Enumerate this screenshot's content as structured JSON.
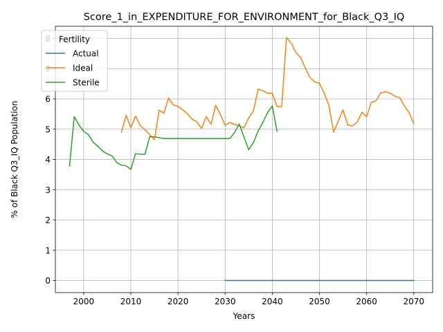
{
  "chart_data": {
    "type": "line",
    "title": "Score_1_in_EXPENDITURE_FOR_ENVIRONMENT_for_Black_Q3_IQ",
    "xlabel": "Years",
    "ylabel": "% of Black Q3_IQ Population",
    "xlim": [
      1994,
      2074
    ],
    "ylim": [
      -0.4,
      8.4
    ],
    "xticks": [
      2000,
      2010,
      2020,
      2030,
      2040,
      2050,
      2060,
      2070
    ],
    "yticks": [
      0,
      1,
      2,
      3,
      4,
      5,
      6,
      7,
      8
    ],
    "grid": true,
    "legend": {
      "title": "Fertility",
      "position": "top-left"
    },
    "series": [
      {
        "name": "Actual",
        "color": "#1f77b4",
        "x": [
          2030,
          2070
        ],
        "y": [
          0,
          0
        ]
      },
      {
        "name": "Ideal",
        "color": "#ff7f0e",
        "x": [
          2008,
          2009,
          2010,
          2011,
          2012,
          2013,
          2014,
          2015,
          2016,
          2017,
          2018,
          2019,
          2020,
          2021,
          2022,
          2023,
          2024,
          2025,
          2026,
          2027,
          2028,
          2029,
          2030,
          2031,
          2032,
          2033,
          2034,
          2035,
          2036,
          2037,
          2038,
          2039,
          2040,
          2041,
          2042,
          2043,
          2044,
          2045,
          2046,
          2047,
          2048,
          2049,
          2050,
          2051,
          2052,
          2053,
          2054,
          2055,
          2056,
          2057,
          2058,
          2059,
          2060,
          2061,
          2062,
          2063,
          2064,
          2065,
          2066,
          2067,
          2068,
          2069,
          2070
        ],
        "y": [
          4.9,
          5.46,
          5.05,
          5.43,
          5.12,
          4.98,
          4.82,
          4.65,
          5.63,
          5.53,
          6.03,
          5.8,
          5.76,
          5.64,
          5.51,
          5.33,
          5.24,
          5.03,
          5.42,
          5.16,
          5.79,
          5.48,
          5.13,
          5.22,
          5.16,
          5.1,
          5.05,
          5.37,
          5.61,
          6.33,
          6.27,
          6.19,
          6.19,
          5.75,
          5.75,
          8.03,
          7.85,
          7.53,
          7.37,
          7.02,
          6.71,
          6.56,
          6.52,
          6.19,
          5.79,
          4.9,
          5.27,
          5.64,
          5.14,
          5.11,
          5.23,
          5.56,
          5.41,
          5.89,
          5.94,
          6.2,
          6.24,
          6.19,
          6.09,
          6.05,
          5.77,
          5.55,
          5.19
        ]
      },
      {
        "name": "Sterile",
        "color": "#2ca02c",
        "x": [
          1997,
          1998,
          1999,
          2000,
          2001,
          2002,
          2003,
          2004,
          2005,
          2006,
          2007,
          2008,
          2009,
          2010,
          2011,
          2012,
          2013,
          2014,
          2015,
          2016,
          2017,
          2018,
          2019,
          2020,
          2021,
          2022,
          2023,
          2024,
          2025,
          2026,
          2027,
          2028,
          2029,
          2030,
          2031,
          2032,
          2033,
          2034,
          2035,
          2036,
          2037,
          2038,
          2039,
          2040,
          2041
        ],
        "y": [
          3.78,
          5.41,
          5.14,
          4.93,
          4.82,
          4.57,
          4.44,
          4.28,
          4.18,
          4.12,
          3.9,
          3.81,
          3.79,
          3.67,
          4.19,
          4.17,
          4.17,
          4.75,
          4.75,
          4.72,
          4.69,
          4.69,
          4.69,
          4.69,
          4.69,
          4.69,
          4.69,
          4.69,
          4.69,
          4.69,
          4.69,
          4.69,
          4.69,
          4.69,
          4.69,
          4.89,
          5.17,
          4.74,
          4.32,
          4.56,
          4.94,
          5.22,
          5.55,
          5.77,
          4.93
        ]
      }
    ]
  }
}
